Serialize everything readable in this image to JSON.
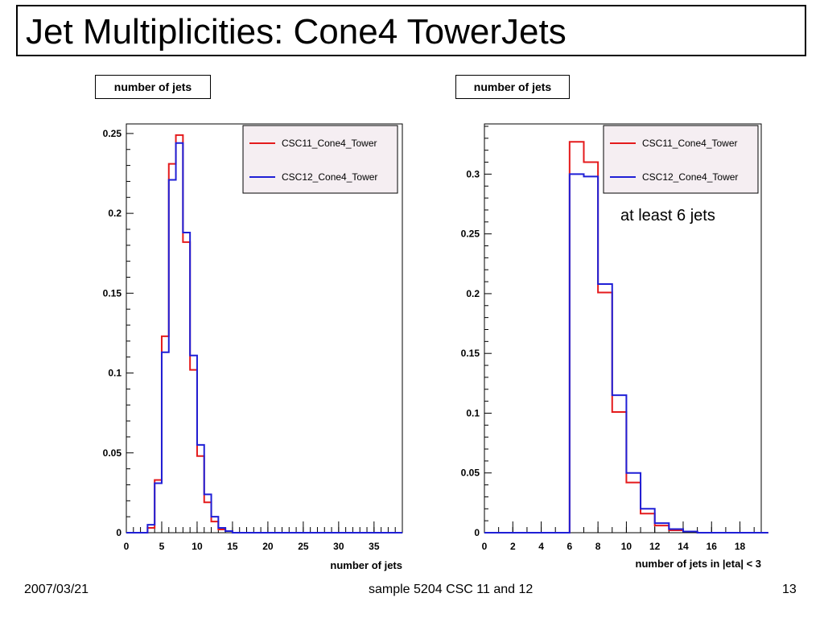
{
  "slide": {
    "title": "Jet Multiplicities: Cone4 TowerJets",
    "footer_date": "2007/03/21",
    "footer_center": "sample 5204 CSC 11 and 12",
    "footer_page": "13"
  },
  "colors": {
    "series_red": "#e41a1c",
    "series_blue": "#1f1fd6",
    "legend_bg": "#f5eef2"
  },
  "chart_data": [
    {
      "type": "histogram",
      "title": "number of jets",
      "xlabel": "number of jets",
      "ylabel": "",
      "bin_width": 1,
      "xlim": [
        0,
        39
      ],
      "ylim": [
        0,
        0.256
      ],
      "x_ticks": [
        0,
        5,
        10,
        15,
        20,
        25,
        30,
        35
      ],
      "y_ticks": [
        0,
        0.05,
        0.1,
        0.15,
        0.2,
        0.25
      ],
      "y_tick_labels": [
        "0",
        "0.05",
        "0.1",
        "0.15",
        "0.2",
        "0.25"
      ],
      "legend_position": "top-right",
      "series": [
        {
          "name": "CSC11_Cone4_Tower",
          "color": "#e41a1c",
          "values": [
            0,
            0,
            0,
            0.003,
            0.033,
            0.123,
            0.231,
            0.249,
            0.182,
            0.102,
            0.048,
            0.019,
            0.007,
            0.002,
            0.001,
            0,
            0,
            0,
            0,
            0,
            0,
            0,
            0,
            0,
            0,
            0,
            0,
            0,
            0,
            0,
            0,
            0,
            0,
            0,
            0,
            0,
            0,
            0,
            0
          ]
        },
        {
          "name": "CSC12_Cone4_Tower",
          "color": "#1f1fd6",
          "values": [
            0,
            0,
            0,
            0.005,
            0.031,
            0.113,
            0.221,
            0.244,
            0.188,
            0.111,
            0.055,
            0.024,
            0.01,
            0.003,
            0.001,
            0,
            0,
            0,
            0,
            0,
            0,
            0,
            0,
            0,
            0,
            0,
            0,
            0,
            0,
            0,
            0,
            0,
            0,
            0,
            0,
            0,
            0,
            0,
            0
          ]
        }
      ]
    },
    {
      "type": "histogram",
      "title": "number of jets",
      "xlabel": "number of jets in |eta| < 3",
      "ylabel": "",
      "bin_width": 1,
      "xlim": [
        0,
        19.5
      ],
      "ylim": [
        0,
        0.342
      ],
      "x_ticks": [
        0,
        2,
        4,
        6,
        8,
        10,
        12,
        14,
        16,
        18
      ],
      "y_ticks": [
        0,
        0.05,
        0.1,
        0.15,
        0.2,
        0.25,
        0.3
      ],
      "y_tick_labels": [
        "0",
        "0.05",
        "0.1",
        "0.15",
        "0.2",
        "0.25",
        "0.3"
      ],
      "legend_position": "top-right",
      "annotation": "at least 6 jets",
      "series": [
        {
          "name": "CSC11_Cone4_Tower",
          "color": "#e41a1c",
          "values": [
            0,
            0,
            0,
            0,
            0,
            0,
            0.327,
            0.31,
            0.201,
            0.101,
            0.042,
            0.016,
            0.006,
            0.002,
            0.001,
            0,
            0,
            0,
            0,
            0
          ]
        },
        {
          "name": "CSC12_Cone4_Tower",
          "color": "#1f1fd6",
          "values": [
            0,
            0,
            0,
            0,
            0,
            0,
            0.3,
            0.298,
            0.208,
            0.115,
            0.05,
            0.02,
            0.008,
            0.003,
            0.001,
            0,
            0,
            0,
            0,
            0
          ]
        }
      ]
    }
  ]
}
